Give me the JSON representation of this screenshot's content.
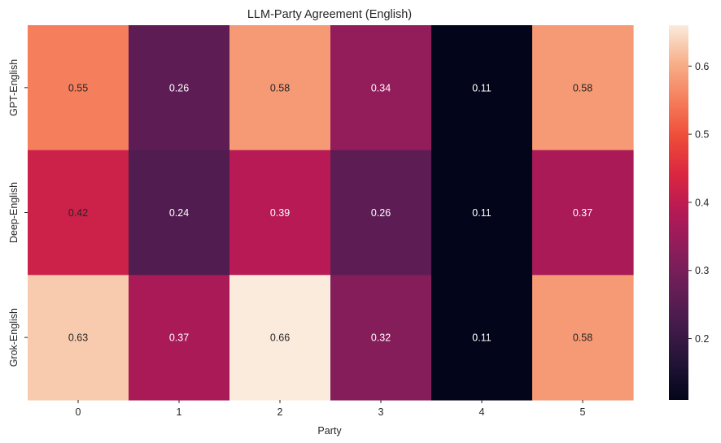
{
  "chart_data": {
    "type": "heatmap",
    "title": "LLM-Party Agreement (English)",
    "xlabel": "Party",
    "ylabel": "",
    "x_categories": [
      "0",
      "1",
      "2",
      "3",
      "4",
      "5"
    ],
    "y_categories": [
      "GPT-English",
      "Deep-English",
      "Grok-English"
    ],
    "values": [
      [
        0.55,
        0.26,
        0.58,
        0.34,
        0.11,
        0.58
      ],
      [
        0.42,
        0.24,
        0.39,
        0.26,
        0.11,
        0.37
      ],
      [
        0.63,
        0.37,
        0.66,
        0.32,
        0.11,
        0.58
      ]
    ],
    "annotations": [
      [
        "0.55",
        "0.26",
        "0.58",
        "0.34",
        "0.11",
        "0.58"
      ],
      [
        "0.42",
        "0.24",
        "0.39",
        "0.26",
        "0.11",
        "0.37"
      ],
      [
        "0.63",
        "0.37",
        "0.66",
        "0.32",
        "0.11",
        "0.58"
      ]
    ],
    "colorbar": {
      "colormap": "rocket",
      "range": [
        0.11,
        0.66
      ],
      "ticks": [
        0.2,
        0.3,
        0.4,
        0.5,
        0.6
      ],
      "tick_labels": [
        "0.2",
        "0.3",
        "0.4",
        "0.5",
        "0.6"
      ]
    },
    "grid": false
  }
}
